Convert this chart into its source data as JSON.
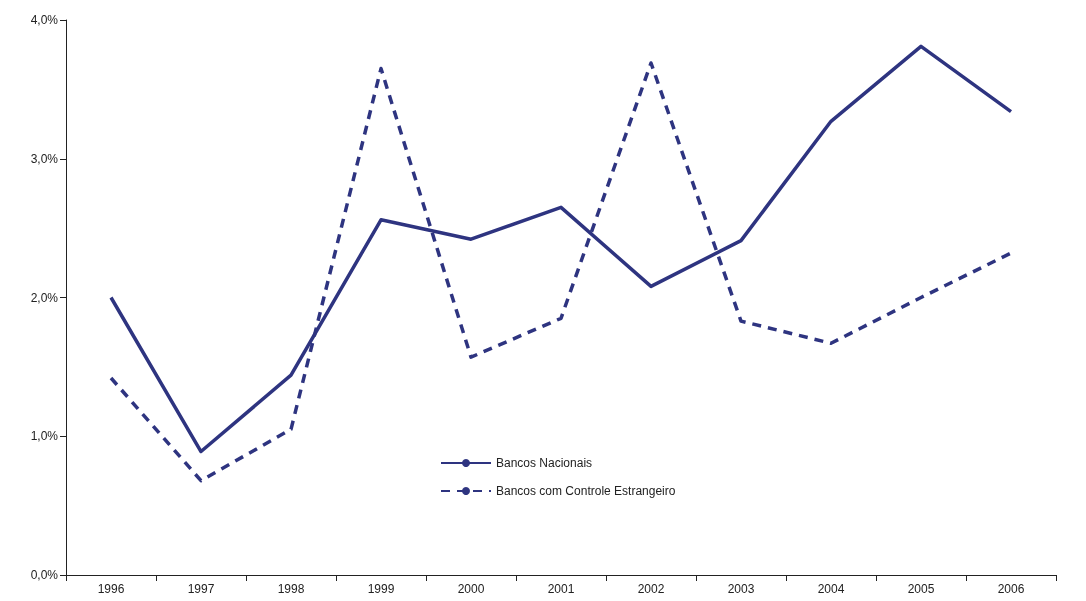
{
  "chart_data": {
    "type": "line",
    "categories": [
      "1996",
      "1997",
      "1998",
      "1999",
      "2000",
      "2001",
      "2002",
      "2003",
      "2004",
      "2005",
      "2006"
    ],
    "series": [
      {
        "name": "Bancos Nacionais",
        "color": "#2e3480",
        "line_style": "solid",
        "values": [
          2.0,
          0.89,
          1.44,
          2.56,
          2.42,
          2.65,
          2.08,
          2.41,
          3.27,
          3.81,
          3.34
        ]
      },
      {
        "name": "Bancos com Controle Estrangeiro",
        "color": "#2e3480",
        "line_style": "dashed",
        "values": [
          1.42,
          0.68,
          1.05,
          3.65,
          1.57,
          1.85,
          3.69,
          1.83,
          1.67,
          2.0,
          2.32
        ]
      }
    ],
    "ylim": [
      0,
      4
    ],
    "yticks": [
      {
        "value": 0,
        "label": "0,0%"
      },
      {
        "value": 1,
        "label": "1,0%"
      },
      {
        "value": 2,
        "label": "2,0%"
      },
      {
        "value": 3,
        "label": "3,0%"
      },
      {
        "value": 4,
        "label": "4,0%"
      }
    ],
    "marker": "none",
    "grid": false,
    "legend": "bottom"
  }
}
